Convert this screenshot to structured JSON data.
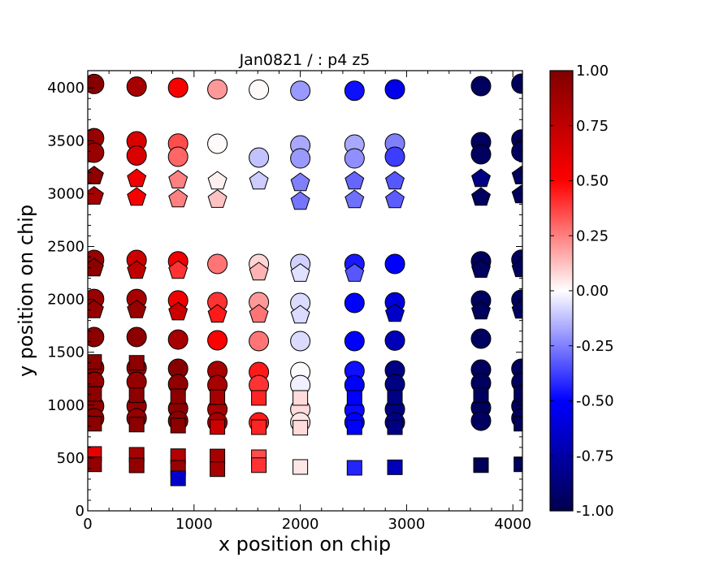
{
  "chart_data": {
    "type": "scatter",
    "title": "Jan0821 / : p4 z5",
    "xlabel": "x position on chip",
    "ylabel": "y position on chip",
    "xlim": [
      0,
      4090
    ],
    "ylim": [
      0,
      4163
    ],
    "xticks": [
      0,
      1000,
      2000,
      3000,
      4000
    ],
    "yticks": [
      0,
      500,
      1000,
      1500,
      2000,
      2500,
      3000,
      3500,
      4000
    ],
    "grid": false,
    "colorbar": {
      "colormap": "seismic",
      "range": [
        -1,
        1
      ],
      "ticks": [
        "-1.00",
        "-0.75",
        "-0.50",
        "-0.25",
        "0.00",
        "0.25",
        "0.50",
        "0.75",
        "1.00"
      ]
    },
    "point_fields": [
      "x",
      "y",
      "value",
      "marker"
    ],
    "points": [
      [
        60,
        4037,
        0.97,
        "circle"
      ],
      [
        60,
        3525,
        0.9,
        "circle"
      ],
      [
        60,
        3387,
        0.9,
        "circle"
      ],
      [
        60,
        2373,
        0.9,
        "circle"
      ],
      [
        60,
        2004,
        0.9,
        "circle"
      ],
      [
        60,
        1644,
        0.95,
        "circle"
      ],
      [
        60,
        1352,
        0.92,
        "circle"
      ],
      [
        60,
        1221,
        0.92,
        "circle"
      ],
      [
        60,
        991,
        0.93,
        "circle"
      ],
      [
        60,
        876,
        0.93,
        "circle"
      ],
      [
        460,
        4012,
        0.85,
        "circle"
      ],
      [
        460,
        3495,
        0.65,
        "circle"
      ],
      [
        460,
        3360,
        0.65,
        "circle"
      ],
      [
        460,
        2373,
        0.7,
        "circle"
      ],
      [
        460,
        2004,
        0.85,
        "circle"
      ],
      [
        460,
        1644,
        0.95,
        "circle"
      ],
      [
        460,
        1352,
        0.9,
        "circle"
      ],
      [
        460,
        1221,
        0.92,
        "circle"
      ],
      [
        460,
        991,
        0.92,
        "circle"
      ],
      [
        460,
        876,
        0.92,
        "circle"
      ],
      [
        850,
        4002,
        0.53,
        "circle"
      ],
      [
        850,
        3474,
        0.35,
        "circle"
      ],
      [
        850,
        3349,
        0.3,
        "circle"
      ],
      [
        850,
        2360,
        0.55,
        "circle"
      ],
      [
        850,
        1990,
        0.55,
        "circle"
      ],
      [
        850,
        1620,
        0.85,
        "circle"
      ],
      [
        850,
        1344,
        0.97,
        "circle"
      ],
      [
        850,
        1198,
        0.93,
        "circle"
      ],
      [
        850,
        968,
        0.95,
        "circle"
      ],
      [
        850,
        852,
        0.95,
        "circle"
      ],
      [
        1220,
        3986,
        0.2,
        "circle"
      ],
      [
        1220,
        3472,
        0.01,
        "circle"
      ],
      [
        1220,
        2335,
        0.27,
        "circle"
      ],
      [
        1220,
        1974,
        0.4,
        "circle"
      ],
      [
        1220,
        1613,
        0.5,
        "circle"
      ],
      [
        1220,
        1323,
        0.85,
        "circle"
      ],
      [
        1220,
        1190,
        0.85,
        "circle"
      ],
      [
        1220,
        960,
        0.85,
        "circle"
      ],
      [
        1220,
        837,
        0.85,
        "circle"
      ],
      [
        1610,
        3983,
        0.01,
        "circle"
      ],
      [
        1610,
        3341,
        -0.12,
        "circle"
      ],
      [
        1610,
        2335,
        0.08,
        "circle"
      ],
      [
        1610,
        1974,
        0.2,
        "circle"
      ],
      [
        1610,
        1605,
        0.27,
        "circle"
      ],
      [
        1610,
        1313,
        0.45,
        "circle"
      ],
      [
        1610,
        1190,
        0.4,
        "circle"
      ],
      [
        1610,
        837,
        0.45,
        "circle"
      ],
      [
        2000,
        3973,
        -0.2,
        "circle"
      ],
      [
        2000,
        3456,
        -0.17,
        "circle"
      ],
      [
        2000,
        3333,
        -0.2,
        "circle"
      ],
      [
        2000,
        2335,
        -0.09,
        "circle"
      ],
      [
        2000,
        1966,
        -0.07,
        "circle"
      ],
      [
        2000,
        1605,
        -0.07,
        "circle"
      ],
      [
        2000,
        1313,
        -0.01,
        "circle"
      ],
      [
        2000,
        1190,
        -0.03,
        "circle"
      ],
      [
        2000,
        960,
        0.07,
        "circle"
      ],
      [
        2000,
        837,
        0.05,
        "circle"
      ],
      [
        2510,
        3973,
        -0.47,
        "circle"
      ],
      [
        2510,
        3464,
        -0.17,
        "circle"
      ],
      [
        2510,
        3333,
        -0.22,
        "circle"
      ],
      [
        2510,
        2335,
        -0.45,
        "circle"
      ],
      [
        2510,
        1966,
        -0.5,
        "circle"
      ],
      [
        2510,
        1605,
        -0.5,
        "circle"
      ],
      [
        2510,
        1323,
        -0.47,
        "circle"
      ],
      [
        2510,
        1190,
        -0.5,
        "circle"
      ],
      [
        2510,
        952,
        -0.48,
        "circle"
      ],
      [
        2510,
        837,
        -0.5,
        "circle"
      ],
      [
        2890,
        3986,
        -0.55,
        "circle"
      ],
      [
        2890,
        3474,
        -0.25,
        "circle"
      ],
      [
        2890,
        3349,
        -0.38,
        "circle"
      ],
      [
        2890,
        2335,
        -0.5,
        "circle"
      ],
      [
        2890,
        1972,
        -0.6,
        "circle"
      ],
      [
        2890,
        1610,
        -0.7,
        "circle"
      ],
      [
        2890,
        1328,
        -0.85,
        "circle"
      ],
      [
        2890,
        1198,
        -0.85,
        "circle"
      ],
      [
        2890,
        960,
        -0.85,
        "circle"
      ],
      [
        2890,
        837,
        -0.85,
        "circle"
      ],
      [
        3700,
        4017,
        -0.95,
        "circle"
      ],
      [
        3700,
        3487,
        -0.95,
        "circle"
      ],
      [
        3700,
        3372,
        -0.95,
        "circle"
      ],
      [
        3700,
        2360,
        -0.95,
        "circle"
      ],
      [
        3700,
        1989,
        -0.95,
        "circle"
      ],
      [
        3700,
        1628,
        -0.95,
        "circle"
      ],
      [
        3700,
        1336,
        -0.95,
        "circle"
      ],
      [
        3700,
        1208,
        -0.95,
        "circle"
      ],
      [
        3700,
        975,
        -0.95,
        "circle"
      ],
      [
        3700,
        852,
        -0.95,
        "circle"
      ],
      [
        4080,
        4040,
        -0.95,
        "circle"
      ],
      [
        4080,
        3512,
        -0.95,
        "circle"
      ],
      [
        4080,
        3397,
        -0.95,
        "circle"
      ],
      [
        4080,
        2375,
        -0.95,
        "circle"
      ],
      [
        4080,
        1997,
        -0.95,
        "circle"
      ],
      [
        4080,
        1344,
        -0.95,
        "circle"
      ],
      [
        4080,
        1216,
        -0.95,
        "circle"
      ],
      [
        4080,
        991,
        -0.95,
        "circle"
      ],
      [
        4080,
        876,
        -0.95,
        "circle"
      ],
      [
        60,
        3167,
        0.95,
        "pentagon"
      ],
      [
        60,
        2975,
        0.85,
        "pentagon"
      ],
      [
        60,
        2296,
        0.95,
        "pentagon"
      ],
      [
        60,
        1900,
        0.92,
        "pentagon"
      ],
      [
        460,
        3141,
        0.55,
        "pentagon"
      ],
      [
        460,
        2965,
        0.53,
        "pentagon"
      ],
      [
        460,
        2273,
        0.75,
        "pentagon"
      ],
      [
        460,
        1900,
        0.9,
        "pentagon"
      ],
      [
        850,
        3128,
        0.25,
        "pentagon"
      ],
      [
        850,
        2949,
        0.25,
        "pentagon"
      ],
      [
        850,
        2273,
        0.4,
        "pentagon"
      ],
      [
        850,
        1880,
        0.7,
        "pentagon"
      ],
      [
        1220,
        3118,
        0.03,
        "pentagon"
      ],
      [
        1220,
        2944,
        0.12,
        "pentagon"
      ],
      [
        1220,
        1859,
        0.45,
        "pentagon"
      ],
      [
        1610,
        3118,
        -0.1,
        "pentagon"
      ],
      [
        1610,
        2258,
        0.15,
        "pentagon"
      ],
      [
        1610,
        1859,
        0.27,
        "pentagon"
      ],
      [
        2000,
        3103,
        -0.25,
        "pentagon"
      ],
      [
        2000,
        2926,
        -0.27,
        "pentagon"
      ],
      [
        2000,
        2245,
        -0.06,
        "pentagon"
      ],
      [
        2000,
        1851,
        -0.07,
        "pentagon"
      ],
      [
        2510,
        3118,
        -0.3,
        "pentagon"
      ],
      [
        2510,
        2941,
        -0.28,
        "pentagon"
      ],
      [
        2510,
        2245,
        -0.33,
        "pentagon"
      ],
      [
        2890,
        3118,
        -0.33,
        "pentagon"
      ],
      [
        2890,
        2941,
        -0.32,
        "pentagon"
      ],
      [
        2890,
        1866,
        -0.65,
        "pentagon"
      ],
      [
        3700,
        3141,
        -0.85,
        "pentagon"
      ],
      [
        3700,
        2965,
        -0.95,
        "pentagon"
      ],
      [
        3700,
        2283,
        -0.95,
        "pentagon"
      ],
      [
        3700,
        1889,
        -0.95,
        "pentagon"
      ],
      [
        4080,
        3167,
        -0.95,
        "pentagon"
      ],
      [
        4080,
        2988,
        -0.95,
        "pentagon"
      ],
      [
        4080,
        2290,
        -0.95,
        "pentagon"
      ],
      [
        4080,
        1897,
        -0.95,
        "pentagon"
      ],
      [
        60,
        1408,
        0.95,
        "square"
      ],
      [
        60,
        1106,
        0.95,
        "square"
      ],
      [
        60,
        824,
        0.95,
        "square"
      ],
      [
        60,
        538,
        0.6,
        "square"
      ],
      [
        60,
        440,
        0.92,
        "square"
      ],
      [
        460,
        1400,
        0.95,
        "square"
      ],
      [
        460,
        1093,
        0.95,
        "square"
      ],
      [
        460,
        816,
        0.95,
        "square"
      ],
      [
        460,
        530,
        0.85,
        "square"
      ],
      [
        460,
        430,
        0.92,
        "square"
      ],
      [
        850,
        1083,
        0.95,
        "square"
      ],
      [
        850,
        806,
        0.95,
        "square"
      ],
      [
        850,
        517,
        0.8,
        "square"
      ],
      [
        850,
        407,
        0.9,
        "square"
      ],
      [
        850,
        307,
        -0.65,
        "square"
      ],
      [
        1220,
        1075,
        0.85,
        "square"
      ],
      [
        1220,
        793,
        0.7,
        "square"
      ],
      [
        1220,
        514,
        0.85,
        "square"
      ],
      [
        1220,
        394,
        0.85,
        "square"
      ],
      [
        1610,
        1068,
        0.43,
        "square"
      ],
      [
        1610,
        791,
        0.43,
        "square"
      ],
      [
        1610,
        507,
        0.35,
        "square"
      ],
      [
        1610,
        432,
        0.4,
        "square"
      ],
      [
        2000,
        1068,
        0.07,
        "square"
      ],
      [
        2000,
        786,
        0.07,
        "square"
      ],
      [
        2000,
        415,
        0.05,
        "square"
      ],
      [
        2510,
        1068,
        -0.5,
        "square"
      ],
      [
        2510,
        791,
        -0.5,
        "square"
      ],
      [
        2510,
        407,
        -0.43,
        "square"
      ],
      [
        2890,
        1075,
        -0.85,
        "square"
      ],
      [
        2890,
        791,
        -0.85,
        "square"
      ],
      [
        2890,
        412,
        -0.7,
        "square"
      ],
      [
        3700,
        1093,
        -0.95,
        "square"
      ],
      [
        3700,
        432,
        -0.97,
        "square"
      ],
      [
        4080,
        1106,
        -0.95,
        "square"
      ],
      [
        4080,
        824,
        -0.95,
        "square"
      ],
      [
        4080,
        440,
        -0.95,
        "square"
      ]
    ]
  }
}
